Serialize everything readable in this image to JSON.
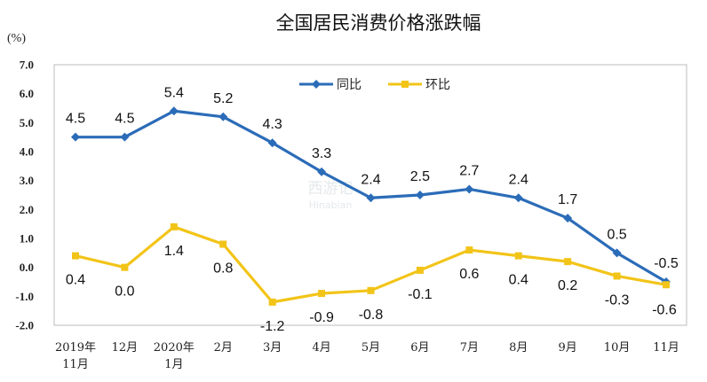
{
  "chart_data": {
    "type": "line",
    "title": "全国居民消费价格涨跌幅",
    "unit_label": "(%)",
    "xlabel": "",
    "ylabel": "",
    "ylim": [
      -2.0,
      7.0
    ],
    "yticks": [
      "7.0",
      "6.0",
      "5.0",
      "4.0",
      "3.0",
      "2.0",
      "1.0",
      "0.0",
      "-1.0",
      "-2.0"
    ],
    "categories": [
      [
        "2019年",
        "11月"
      ],
      [
        "12月"
      ],
      [
        "2020年",
        "1月"
      ],
      [
        "2月"
      ],
      [
        "3月"
      ],
      [
        "4月"
      ],
      [
        "5月"
      ],
      [
        "6月"
      ],
      [
        "7月"
      ],
      [
        "8月"
      ],
      [
        "9月"
      ],
      [
        "10月"
      ],
      [
        "11月"
      ]
    ],
    "series": [
      {
        "name": "同比",
        "color": "#2b6cb8",
        "marker": "diamond",
        "values": [
          4.5,
          4.5,
          5.4,
          5.2,
          4.3,
          3.3,
          2.4,
          2.5,
          2.7,
          2.4,
          1.7,
          0.5,
          -0.5
        ],
        "labels": [
          "4.5",
          "4.5",
          "5.4",
          "5.2",
          "4.3",
          "3.3",
          "2.4",
          "2.5",
          "2.7",
          "2.4",
          "1.7",
          "0.5",
          "-0.5"
        ]
      },
      {
        "name": "环比",
        "color": "#f2c418",
        "marker": "square",
        "values": [
          0.4,
          0.0,
          1.4,
          0.8,
          -1.2,
          -0.9,
          -0.8,
          -0.1,
          0.6,
          0.4,
          0.2,
          -0.3,
          -0.6
        ],
        "labels": [
          "0.4",
          "0.0",
          "1.4",
          "0.8",
          "-1.2",
          "-0.9",
          "-0.8",
          "-0.1",
          "0.6",
          "0.4",
          "0.2",
          "-0.3",
          "-0.6"
        ]
      }
    ],
    "legend": "top-center",
    "grid": false
  },
  "watermark": {
    "cn": "西游记",
    "en": "Hinabian"
  }
}
